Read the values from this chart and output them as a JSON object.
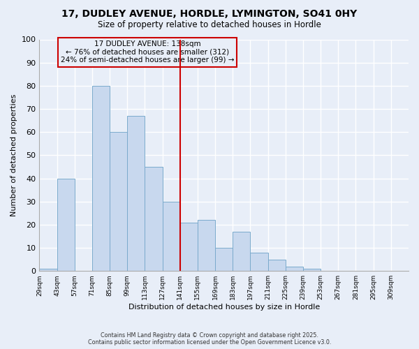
{
  "title": "17, DUDLEY AVENUE, HORDLE, LYMINGTON, SO41 0HY",
  "subtitle": "Size of property relative to detached houses in Hordle",
  "xlabel": "Distribution of detached houses by size in Hordle",
  "ylabel": "Number of detached properties",
  "bar_color": "#c8d8ee",
  "bar_edgecolor": "#7aaacc",
  "background_color": "#e8eef8",
  "grid_color": "#ffffff",
  "annotation_box_edgecolor": "#cc0000",
  "vline_color": "#cc0000",
  "vline_x": 141,
  "bin_edges": [
    29,
    43,
    57,
    71,
    85,
    99,
    113,
    127,
    141,
    155,
    169,
    183,
    197,
    211,
    225,
    239,
    253,
    267,
    281,
    295,
    309
  ],
  "bin_labels": [
    "29sqm",
    "43sqm",
    "57sqm",
    "71sqm",
    "85sqm",
    "99sqm",
    "113sqm",
    "127sqm",
    "141sqm",
    "155sqm",
    "169sqm",
    "183sqm",
    "197sqm",
    "211sqm",
    "225sqm",
    "239sqm",
    "253sqm",
    "267sqm",
    "281sqm",
    "295sqm",
    "309sqm"
  ],
  "bar_heights": [
    1,
    40,
    0,
    80,
    60,
    67,
    45,
    30,
    21,
    22,
    10,
    17,
    8,
    5,
    2,
    1,
    0,
    0,
    0,
    0
  ],
  "ylim": [
    0,
    100
  ],
  "yticks": [
    0,
    10,
    20,
    30,
    40,
    50,
    60,
    70,
    80,
    90,
    100
  ],
  "annotation_line1": "17 DUDLEY AVENUE: 138sqm",
  "annotation_line2": "← 76% of detached houses are smaller (312)",
  "annotation_line3": "24% of semi-detached houses are larger (99) →",
  "footer_line1": "Contains HM Land Registry data © Crown copyright and database right 2025.",
  "footer_line2": "Contains public sector information licensed under the Open Government Licence v3.0."
}
